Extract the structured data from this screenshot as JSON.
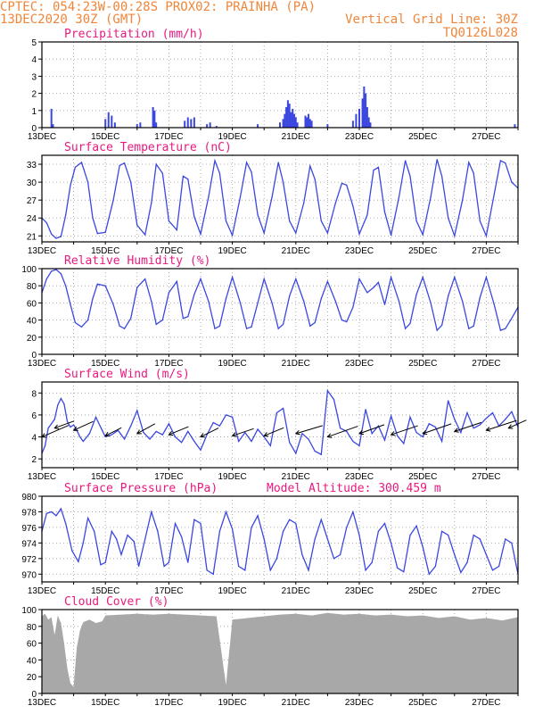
{
  "header": {
    "line1": "CPTEC:   054:23W-00:28S   PROX02: PRAINHA (PA)",
    "line2_left": "13DEC2020 30Z (GMT)",
    "line2_right": "Vertical Grid Line: 30Z",
    "line3_right": "TQ0126L028"
  },
  "colors": {
    "header": "#f0863a",
    "title": "#e8197f",
    "line": "#3b47e0",
    "cloud": "#a8a8a8",
    "grid": "#9a9a9a"
  },
  "x_tick_labels": [
    "13DEC",
    "15DEC",
    "17DEC",
    "19DEC",
    "21DEC",
    "23DEC",
    "25DEC",
    "27DEC"
  ],
  "chart_data": [
    {
      "type": "bar",
      "title": "Precipitation (mm/h)",
      "ylim": [
        0,
        5
      ],
      "yticks": [
        0,
        1,
        2,
        3,
        4,
        5
      ],
      "x_range_days": [
        13,
        28
      ],
      "x": [
        13.3,
        13.35,
        15.0,
        15.1,
        15.2,
        15.3,
        16.0,
        16.1,
        16.5,
        16.55,
        16.6,
        17.5,
        17.6,
        17.7,
        17.8,
        18.2,
        18.3,
        18.5,
        19.8,
        20.5,
        20.6,
        20.65,
        20.7,
        20.75,
        20.8,
        20.85,
        20.9,
        20.95,
        21.0,
        21.05,
        21.3,
        21.35,
        21.4,
        21.45,
        21.5,
        22.0,
        22.8,
        22.9,
        23.0,
        23.1,
        23.15,
        23.2,
        23.25,
        23.3,
        23.35,
        27.9
      ],
      "values": [
        1.1,
        0.2,
        0.5,
        0.9,
        0.7,
        0.3,
        0.2,
        0.3,
        1.2,
        1.0,
        0.3,
        0.4,
        0.6,
        0.5,
        0.6,
        0.2,
        0.3,
        0.1,
        0.2,
        0.3,
        0.5,
        0.8,
        1.2,
        1.6,
        1.4,
        0.9,
        1.1,
        0.8,
        0.6,
        0.3,
        0.7,
        0.6,
        0.8,
        0.5,
        0.4,
        0.2,
        0.4,
        0.8,
        1.1,
        1.7,
        2.4,
        2.0,
        1.2,
        0.6,
        0.3,
        0.2
      ]
    },
    {
      "type": "line",
      "title": "Surface Temperature (nC)",
      "ylim": [
        20,
        34.5
      ],
      "yticks": [
        21,
        24,
        27,
        30,
        33
      ],
      "x_range_days": [
        13,
        28
      ],
      "x": [
        13.0,
        13.15,
        13.3,
        13.45,
        13.6,
        13.75,
        13.9,
        14.05,
        14.25,
        14.45,
        14.6,
        14.75,
        15.0,
        15.25,
        15.45,
        15.6,
        15.8,
        16.0,
        16.25,
        16.45,
        16.6,
        16.8,
        17.0,
        17.25,
        17.45,
        17.6,
        17.8,
        18.0,
        18.25,
        18.45,
        18.6,
        18.8,
        19.0,
        19.25,
        19.45,
        19.6,
        19.8,
        20.0,
        20.25,
        20.45,
        20.6,
        20.8,
        21.0,
        21.25,
        21.45,
        21.6,
        21.8,
        22.0,
        22.25,
        22.45,
        22.6,
        22.8,
        23.0,
        23.25,
        23.45,
        23.6,
        23.8,
        24.0,
        24.25,
        24.45,
        24.6,
        24.8,
        25.0,
        25.25,
        25.45,
        25.6,
        25.8,
        26.0,
        26.25,
        26.45,
        26.6,
        26.8,
        27.0,
        27.25,
        27.45,
        27.6,
        27.8,
        28.0
      ],
      "values": [
        24,
        23.2,
        21.3,
        20.6,
        20.9,
        24.5,
        29.5,
        32.5,
        33.3,
        30,
        24,
        21.4,
        21.6,
        27,
        32.8,
        33.2,
        30,
        22.8,
        21.2,
        26.5,
        33,
        31.5,
        23.5,
        22,
        31,
        30.5,
        24.2,
        21.3,
        27.5,
        33.6,
        31.5,
        23.5,
        21.1,
        27.5,
        33.3,
        31.7,
        24.5,
        21.5,
        27.5,
        33.3,
        30,
        23.5,
        21.5,
        26.5,
        32.7,
        30.5,
        23.5,
        21.5,
        26.5,
        29.8,
        29.5,
        26,
        21.3,
        24.5,
        32,
        32.5,
        25,
        21.1,
        27.5,
        33.6,
        31,
        23.5,
        21.2,
        27.5,
        33.8,
        31,
        24,
        21.0,
        27,
        33.3,
        31.5,
        23.5,
        21.0,
        28,
        33.6,
        33.2,
        30,
        29
      ]
    },
    {
      "type": "line",
      "title": "Relative Humidity (%)",
      "ylim": [
        0,
        100
      ],
      "yticks": [
        0,
        20,
        40,
        60,
        80,
        100
      ],
      "x_range_days": [
        13,
        28
      ],
      "x": [
        13.0,
        13.15,
        13.3,
        13.45,
        13.6,
        13.75,
        13.9,
        14.05,
        14.25,
        14.45,
        14.6,
        14.75,
        15.0,
        15.25,
        15.45,
        15.6,
        15.8,
        16.0,
        16.25,
        16.45,
        16.6,
        16.8,
        17.0,
        17.25,
        17.45,
        17.6,
        17.8,
        18.0,
        18.25,
        18.45,
        18.6,
        18.8,
        19.0,
        19.25,
        19.45,
        19.6,
        19.8,
        20.0,
        20.25,
        20.45,
        20.6,
        20.8,
        21.0,
        21.25,
        21.45,
        21.6,
        21.8,
        22.0,
        22.25,
        22.45,
        22.6,
        22.8,
        23.0,
        23.25,
        23.45,
        23.6,
        23.8,
        24.0,
        24.25,
        24.45,
        24.6,
        24.8,
        25.0,
        25.25,
        25.45,
        25.6,
        25.8,
        26.0,
        26.25,
        26.45,
        26.6,
        26.8,
        27.0,
        27.25,
        27.45,
        27.6,
        27.8,
        28.0
      ],
      "values": [
        72,
        88,
        97,
        99,
        94,
        80,
        58,
        37,
        32,
        40,
        65,
        82,
        80,
        58,
        33,
        30,
        42,
        78,
        88,
        62,
        35,
        40,
        72,
        85,
        42,
        44,
        70,
        88,
        62,
        30,
        33,
        65,
        90,
        60,
        30,
        32,
        60,
        88,
        60,
        30,
        35,
        68,
        88,
        62,
        33,
        37,
        65,
        85,
        62,
        40,
        38,
        55,
        88,
        72,
        78,
        84,
        58,
        90,
        62,
        30,
        36,
        70,
        90,
        60,
        28,
        34,
        68,
        90,
        62,
        30,
        33,
        66,
        90,
        58,
        28,
        30,
        42,
        55
      ]
    },
    {
      "type": "line",
      "title": "Surface Wind (m/s)",
      "ylim": [
        1.2,
        9.0
      ],
      "yticks": [
        2,
        4,
        6,
        8
      ],
      "x_range_days": [
        13,
        28
      ],
      "x": [
        13.0,
        13.1,
        13.2,
        13.3,
        13.4,
        13.5,
        13.6,
        13.7,
        13.8,
        13.9,
        14.0,
        14.1,
        14.2,
        14.3,
        14.5,
        14.7,
        14.9,
        15.0,
        15.2,
        15.4,
        15.6,
        15.8,
        16.0,
        16.2,
        16.4,
        16.6,
        16.8,
        17.0,
        17.2,
        17.4,
        17.6,
        17.8,
        18.0,
        18.2,
        18.4,
        18.6,
        18.8,
        19.0,
        19.2,
        19.4,
        19.6,
        19.8,
        20.0,
        20.2,
        20.4,
        20.6,
        20.8,
        21.0,
        21.2,
        21.4,
        21.6,
        21.8,
        22.0,
        22.2,
        22.4,
        22.6,
        22.8,
        23.0,
        23.2,
        23.4,
        23.6,
        23.8,
        24.0,
        24.2,
        24.4,
        24.6,
        24.8,
        25.0,
        25.2,
        25.4,
        25.6,
        25.8,
        26.0,
        26.2,
        26.4,
        26.6,
        26.8,
        27.0,
        27.2,
        27.4,
        27.6,
        27.8,
        28.0
      ],
      "values": [
        2.5,
        3.2,
        4.8,
        5.2,
        5.6,
        6.9,
        7.5,
        7.0,
        5.4,
        4.9,
        5.1,
        4.6,
        4.0,
        3.6,
        4.3,
        5.8,
        4.6,
        4.0,
        4.2,
        4.6,
        3.8,
        5.0,
        6.4,
        4.4,
        3.8,
        4.5,
        4.2,
        5.2,
        4.0,
        3.5,
        4.5,
        3.6,
        2.8,
        4.2,
        5.3,
        5.0,
        6.0,
        5.8,
        3.6,
        4.4,
        3.6,
        4.7,
        4.0,
        3.2,
        6.2,
        6.6,
        3.5,
        2.5,
        4.3,
        3.8,
        2.7,
        2.4,
        8.2,
        7.4,
        4.8,
        4.5,
        3.6,
        3.2,
        6.5,
        4.3,
        5.0,
        3.7,
        5.9,
        4.1,
        3.4,
        5.8,
        4.4,
        4.0,
        5.2,
        4.9,
        3.6,
        7.3,
        5.6,
        4.4,
        6.2,
        4.8,
        5.1,
        5.7,
        6.2,
        5.0,
        5.6,
        6.3,
        4.9
      ],
      "arrows": [
        {
          "x": 13.0,
          "y": 4.0,
          "dx": 30,
          "dy": -13
        },
        {
          "x": 13.4,
          "y": 4.8,
          "dx": 22,
          "dy": -8
        },
        {
          "x": 14.0,
          "y": 4.6,
          "dx": 22,
          "dy": -10
        },
        {
          "x": 15.0,
          "y": 4.1,
          "dx": 18,
          "dy": -9
        },
        {
          "x": 16.0,
          "y": 4.3,
          "dx": 20,
          "dy": -11
        },
        {
          "x": 17.0,
          "y": 4.2,
          "dx": 22,
          "dy": -9
        },
        {
          "x": 18.0,
          "y": 4.0,
          "dx": 20,
          "dy": -10
        },
        {
          "x": 19.0,
          "y": 4.1,
          "dx": 24,
          "dy": -8
        },
        {
          "x": 20.0,
          "y": 4.1,
          "dx": 22,
          "dy": -9
        },
        {
          "x": 21.0,
          "y": 4.3,
          "dx": 30,
          "dy": -9
        },
        {
          "x": 22.0,
          "y": 4.0,
          "dx": 34,
          "dy": -12
        },
        {
          "x": 23.0,
          "y": 4.3,
          "dx": 28,
          "dy": -10
        },
        {
          "x": 24.0,
          "y": 4.2,
          "dx": 30,
          "dy": -10
        },
        {
          "x": 25.0,
          "y": 4.3,
          "dx": 32,
          "dy": -11
        },
        {
          "x": 26.0,
          "y": 4.5,
          "dx": 30,
          "dy": -10
        },
        {
          "x": 27.0,
          "y": 4.6,
          "dx": 34,
          "dy": -11
        },
        {
          "x": 27.7,
          "y": 4.8,
          "dx": 20,
          "dy": -9
        }
      ]
    },
    {
      "type": "line",
      "title": "Surface Pressure (hPa)",
      "annotation": "Model Altitude: 300.459  m",
      "ylim": [
        969,
        980
      ],
      "yticks": [
        970,
        972,
        974,
        976,
        978,
        980
      ],
      "x_range_days": [
        13,
        28
      ],
      "x": [
        13.0,
        13.15,
        13.3,
        13.45,
        13.6,
        13.75,
        13.95,
        14.15,
        14.3,
        14.45,
        14.65,
        14.85,
        15.0,
        15.2,
        15.35,
        15.5,
        15.7,
        15.9,
        16.05,
        16.25,
        16.45,
        16.65,
        16.85,
        17.0,
        17.2,
        17.4,
        17.6,
        17.8,
        18.0,
        18.2,
        18.4,
        18.6,
        18.8,
        19.0,
        19.2,
        19.4,
        19.6,
        19.8,
        20.0,
        20.2,
        20.4,
        20.6,
        20.8,
        21.0,
        21.2,
        21.4,
        21.6,
        21.8,
        22.0,
        22.2,
        22.4,
        22.6,
        22.8,
        23.0,
        23.2,
        23.4,
        23.6,
        23.8,
        24.0,
        24.2,
        24.4,
        24.6,
        24.8,
        25.0,
        25.2,
        25.4,
        25.6,
        25.8,
        26.0,
        26.2,
        26.4,
        26.6,
        26.8,
        27.0,
        27.2,
        27.4,
        27.6,
        27.8,
        28.0
      ],
      "values": [
        975.5,
        977.8,
        978.0,
        977.5,
        978.4,
        976.5,
        973.0,
        971.6,
        974.0,
        977.2,
        975.5,
        971.2,
        971.5,
        975.5,
        974.5,
        972.5,
        975.0,
        974.2,
        971.0,
        974.5,
        978.0,
        975.5,
        971.0,
        971.5,
        976.5,
        974.8,
        971.5,
        977.0,
        976.5,
        970.5,
        970.0,
        975.5,
        978.0,
        975.8,
        971.0,
        970.5,
        976.0,
        977.5,
        974.5,
        970.5,
        972.0,
        975.5,
        977.0,
        976.5,
        972.5,
        970.5,
        974.5,
        977.0,
        974.5,
        972.0,
        972.5,
        976.0,
        978.0,
        975.0,
        970.5,
        971.5,
        975.5,
        976.5,
        974.0,
        970.8,
        970.3,
        975.0,
        976.2,
        973.5,
        970.0,
        971.0,
        975.5,
        975.0,
        972.5,
        970.2,
        971.5,
        975.0,
        974.5,
        972.5,
        970.5,
        971.0,
        974.5,
        974.0,
        970.0
      ]
    },
    {
      "type": "bar",
      "title": "Cloud Cover (%)",
      "ylim": [
        0,
        100
      ],
      "yticks": [
        0,
        20,
        40,
        60,
        80,
        100
      ],
      "x_range_days": [
        13,
        28
      ],
      "x": [
        13.0,
        13.1,
        13.2,
        13.3,
        13.4,
        13.5,
        13.6,
        13.7,
        13.8,
        13.9,
        14.0,
        14.1,
        14.2,
        14.3,
        14.5,
        14.7,
        14.9,
        15.0,
        15.5,
        16.0,
        16.5,
        17.0,
        17.5,
        18.0,
        18.5,
        18.8,
        19.0,
        19.5,
        20.0,
        20.5,
        21.0,
        21.5,
        22.0,
        22.5,
        23.0,
        23.5,
        24.0,
        24.5,
        25.0,
        25.5,
        26.0,
        26.5,
        27.0,
        27.5,
        28.0
      ],
      "values": [
        92,
        95,
        88,
        91,
        70,
        93,
        84,
        60,
        30,
        12,
        8,
        55,
        75,
        85,
        88,
        84,
        86,
        93,
        94,
        95,
        94,
        95,
        94,
        93,
        92,
        10,
        88,
        90,
        92,
        94,
        95,
        93,
        96,
        94,
        95,
        93,
        94,
        92,
        93,
        90,
        92,
        88,
        90,
        87,
        91
      ]
    }
  ]
}
